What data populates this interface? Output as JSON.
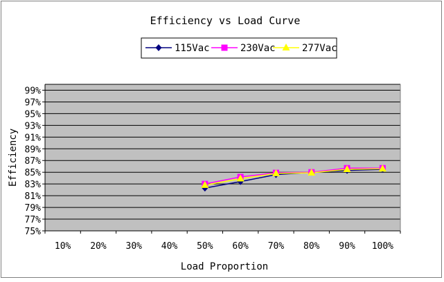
{
  "chart_data": {
    "type": "line",
    "title": "Efficiency vs Load Curve",
    "xlabel": "Load Proportion",
    "ylabel": "Efficiency",
    "categories": [
      "10%",
      "20%",
      "30%",
      "40%",
      "50%",
      "60%",
      "70%",
      "80%",
      "90%",
      "100%"
    ],
    "y_ticks": [
      "75%",
      "77%",
      "79%",
      "81%",
      "83%",
      "85%",
      "87%",
      "89%",
      "91%",
      "93%",
      "95%",
      "97%",
      "99%"
    ],
    "ylim": [
      75,
      100
    ],
    "grid": "horizontal",
    "legend_position": "top",
    "plot_background": "#c0c0c0",
    "series": [
      {
        "name": "115Vac",
        "color": "#000080",
        "marker": "diamond",
        "values": [
          null,
          null,
          null,
          null,
          82.3,
          83.4,
          84.6,
          85.0,
          85.3,
          85.5
        ]
      },
      {
        "name": "230Vac",
        "color": "#ff00ff",
        "marker": "square",
        "values": [
          null,
          null,
          null,
          null,
          83.0,
          84.2,
          84.9,
          85.0,
          85.7,
          85.7
        ]
      },
      {
        "name": "277Vac",
        "color": "#ffff00",
        "marker": "triangle",
        "values": [
          null,
          null,
          null,
          null,
          82.8,
          83.9,
          84.8,
          84.9,
          85.5,
          85.6
        ]
      }
    ]
  }
}
